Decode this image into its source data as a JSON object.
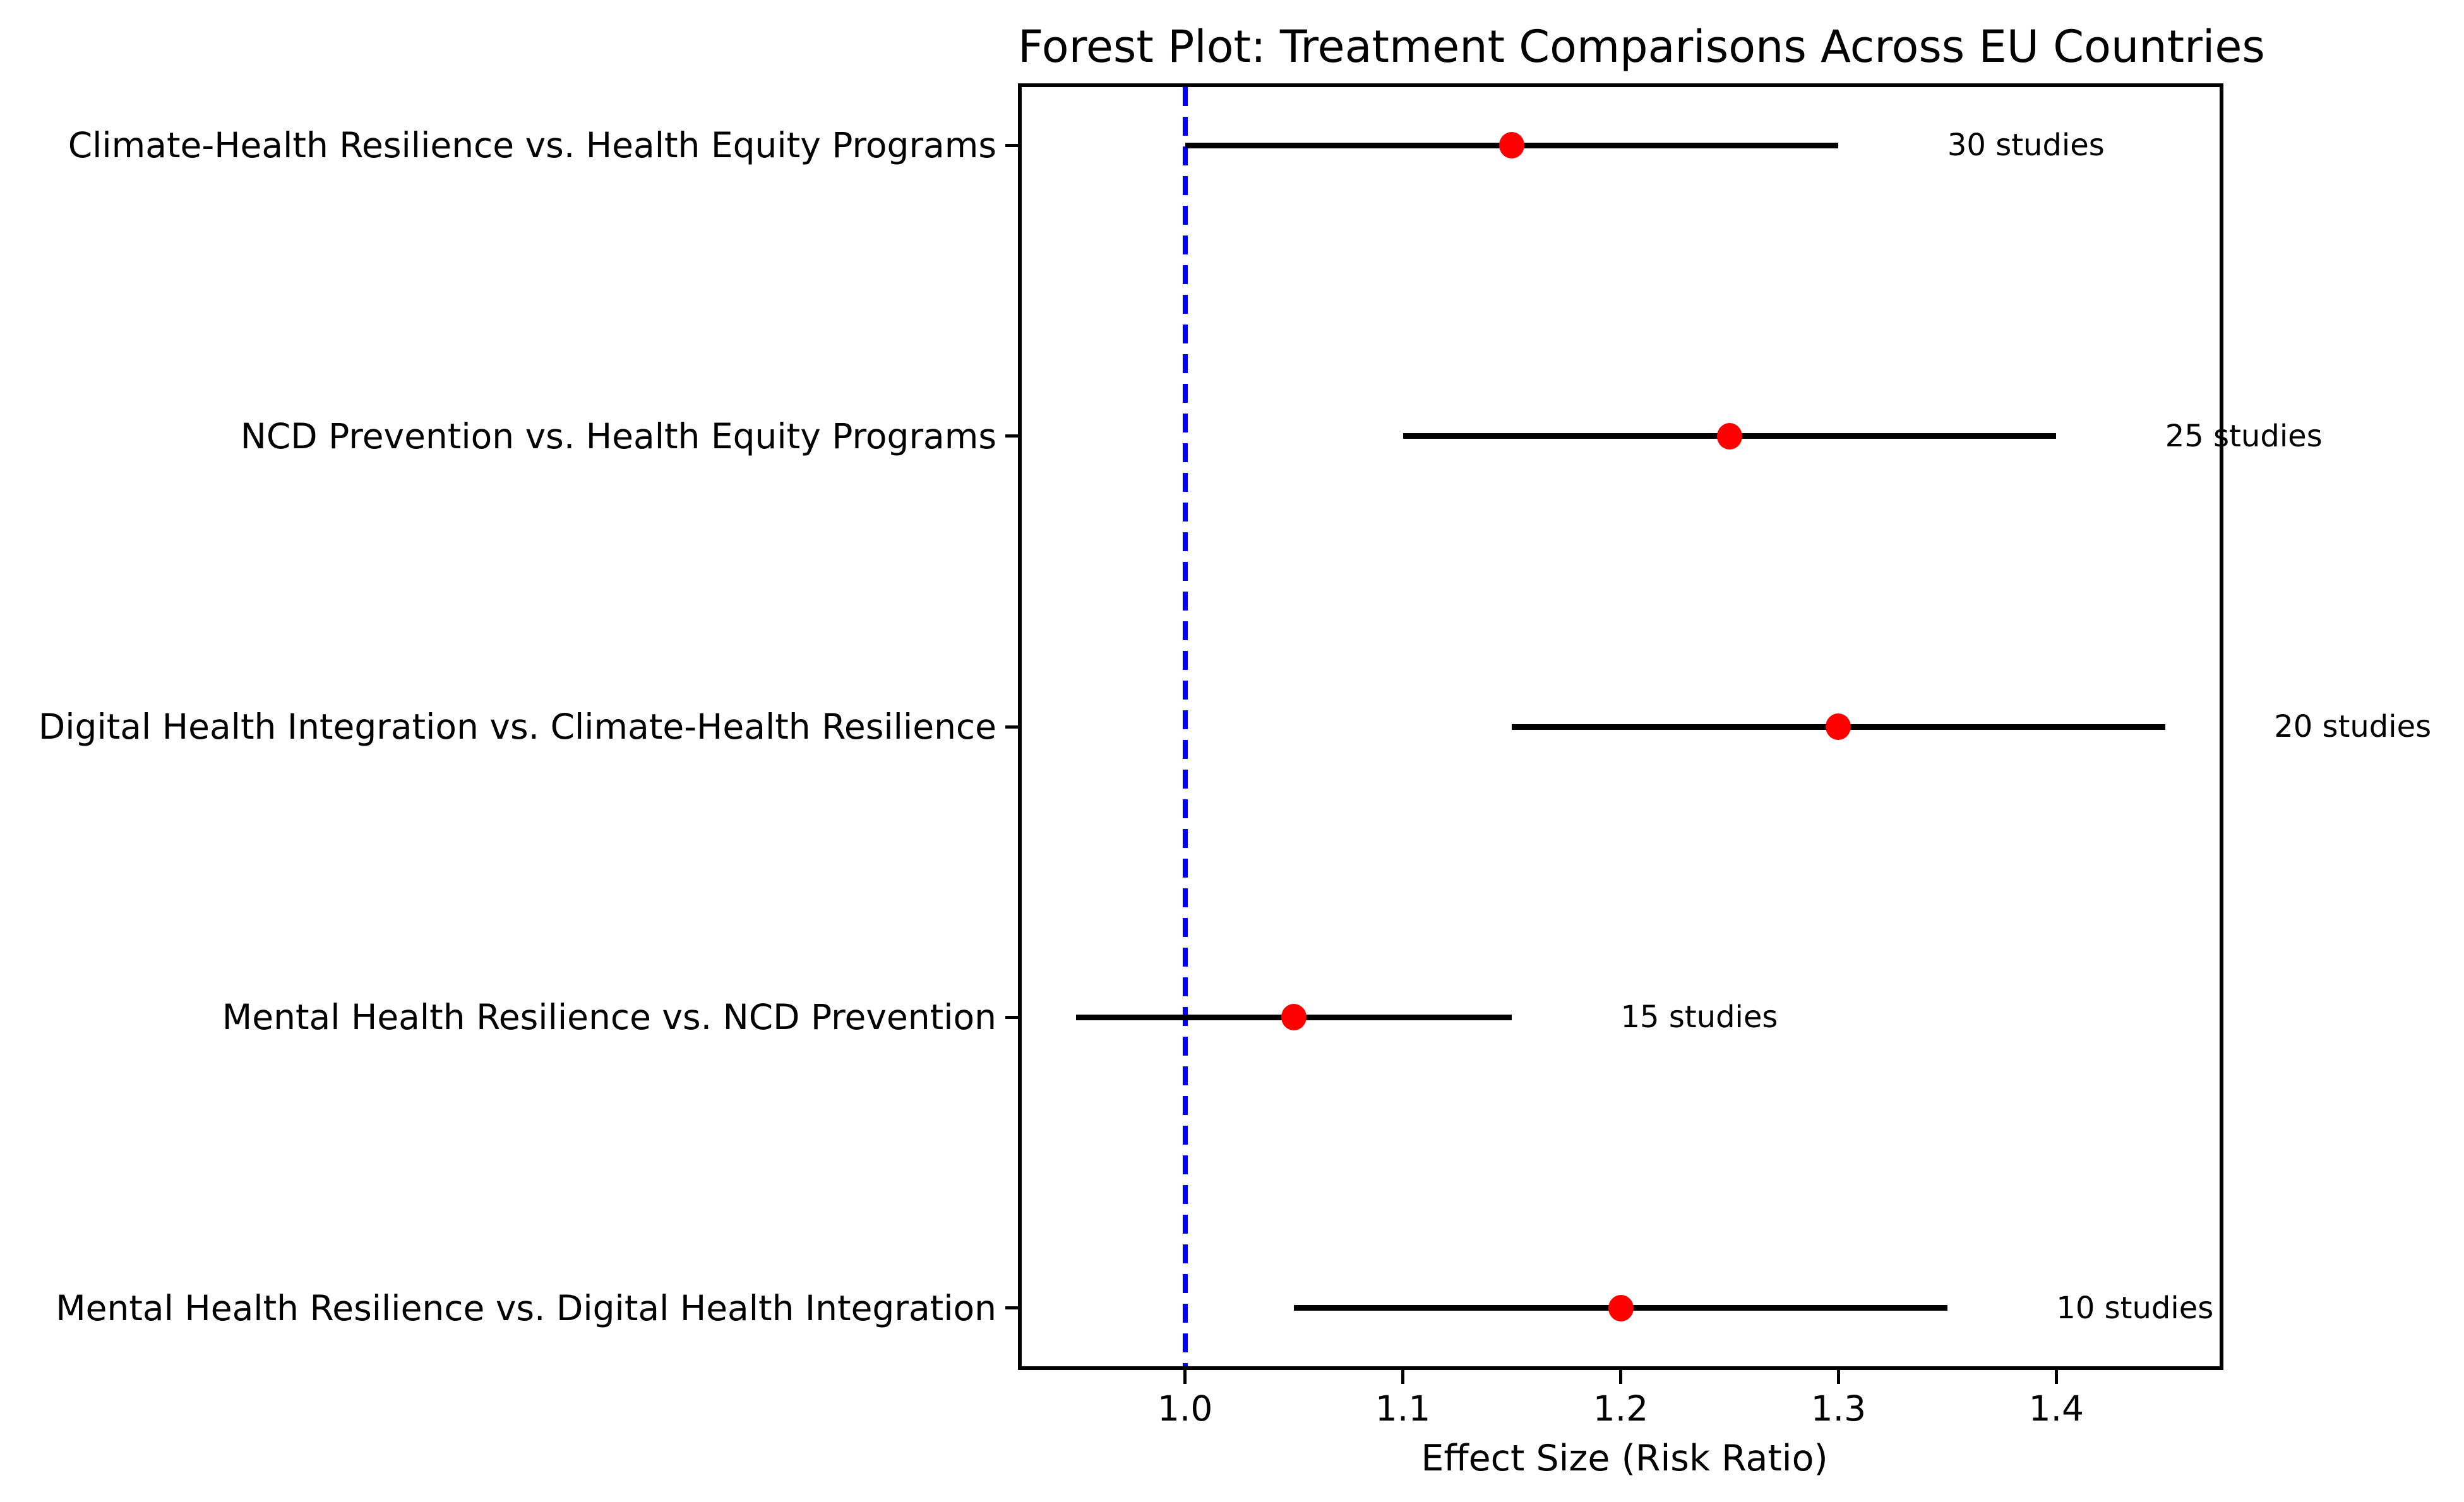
{
  "chart_data": {
    "type": "scatter",
    "variant": "forest_plot",
    "title": "Forest Plot: Treatment Comparisons Across EU Countries",
    "xlabel": "Effect Size (Risk Ratio)",
    "ylabel": "",
    "xlim": [
      0.925,
      1.475
    ],
    "ylim": [
      -0.2,
      4.2
    ],
    "xticks": [
      1.0,
      1.1,
      1.2,
      1.3,
      1.4
    ],
    "grid": false,
    "legend": "none",
    "reference_line": {
      "x": 1.0,
      "color": "#0000ff",
      "style": "dashed"
    },
    "marker_color": "#ff0000",
    "ci_color": "#000000",
    "text_color": "#000000",
    "study_label_offset": 0.05,
    "comparisons": [
      {
        "label": "Climate-Health Resilience vs. Health Equity Programs",
        "effect": 1.15,
        "ci_lower": 1.0,
        "ci_upper": 1.3,
        "n_studies": 30,
        "studies_label": "30 studies"
      },
      {
        "label": "NCD Prevention vs. Health Equity Programs",
        "effect": 1.25,
        "ci_lower": 1.1,
        "ci_upper": 1.4,
        "n_studies": 25,
        "studies_label": "25 studies"
      },
      {
        "label": "Digital Health Integration vs. Climate-Health Resilience",
        "effect": 1.3,
        "ci_lower": 1.15,
        "ci_upper": 1.45,
        "n_studies": 20,
        "studies_label": "20 studies"
      },
      {
        "label": "Mental Health Resilience vs. NCD Prevention",
        "effect": 1.05,
        "ci_lower": 0.95,
        "ci_upper": 1.15,
        "n_studies": 15,
        "studies_label": "15 studies"
      },
      {
        "label": "Mental Health Resilience vs. Digital Health Integration",
        "effect": 1.2,
        "ci_lower": 1.05,
        "ci_upper": 1.35,
        "n_studies": 10,
        "studies_label": "10 studies"
      }
    ]
  }
}
